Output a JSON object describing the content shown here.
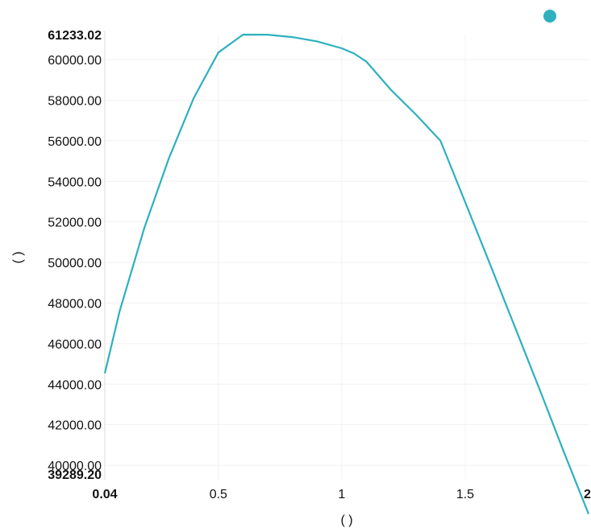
{
  "chart_data": {
    "type": "line",
    "xlabel": "( )",
    "ylabel": "( )",
    "xlim": [
      0.04,
      2
    ],
    "ylim": [
      39289.2,
      61233.02
    ],
    "x_ticks": [
      {
        "value": 0.04,
        "label": "0.04",
        "bold": true
      },
      {
        "value": 0.5,
        "label": "0.5",
        "bold": false
      },
      {
        "value": 1,
        "label": "1",
        "bold": false
      },
      {
        "value": 1.5,
        "label": "1.5",
        "bold": false
      },
      {
        "value": 2,
        "label": "2",
        "bold": true
      }
    ],
    "y_ticks": [
      {
        "value": 39289.2,
        "label": "39289.20",
        "bold": true
      },
      {
        "value": 40000,
        "label": "40000.00",
        "bold": false
      },
      {
        "value": 42000,
        "label": "42000.00",
        "bold": false
      },
      {
        "value": 44000,
        "label": "44000.00",
        "bold": false
      },
      {
        "value": 46000,
        "label": "46000.00",
        "bold": false
      },
      {
        "value": 48000,
        "label": "48000.00",
        "bold": false
      },
      {
        "value": 50000,
        "label": "50000.00",
        "bold": false
      },
      {
        "value": 52000,
        "label": "52000.00",
        "bold": false
      },
      {
        "value": 54000,
        "label": "54000.00",
        "bold": false
      },
      {
        "value": 56000,
        "label": "56000.00",
        "bold": false
      },
      {
        "value": 58000,
        "label": "58000.00",
        "bold": false
      },
      {
        "value": 60000,
        "label": "60000.00",
        "bold": false
      },
      {
        "value": 61233.02,
        "label": "61233.02",
        "bold": true
      }
    ],
    "grid": true,
    "legend_position": "top-right",
    "series": [
      {
        "color": "#2eb0bf",
        "x": [
          0.04,
          0.1,
          0.2,
          0.3,
          0.4,
          0.5,
          0.6,
          0.7,
          0.8,
          0.9,
          1.0,
          1.05,
          1.1,
          1.2,
          1.3,
          1.4,
          1.5,
          1.6,
          1.7,
          1.8,
          1.9,
          2.0
        ],
        "y": [
          44537,
          47600,
          51700,
          55150,
          58100,
          60350,
          61233,
          61230,
          61110,
          60900,
          60560,
          60300,
          59900,
          58500,
          57300,
          56000,
          52980,
          49930,
          46860,
          43790,
          40650,
          37600
        ]
      }
    ]
  }
}
